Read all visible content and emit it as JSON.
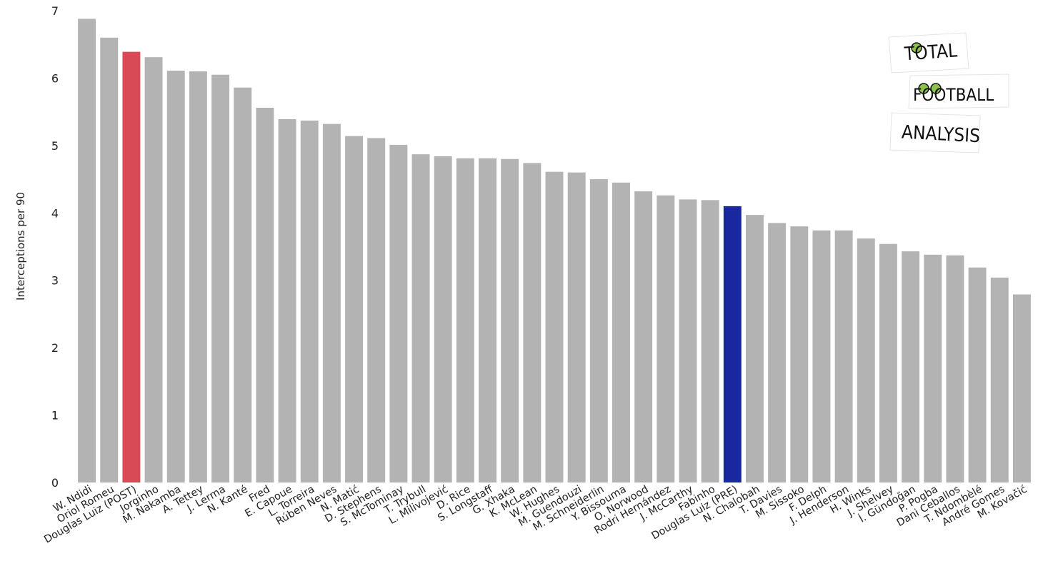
{
  "chart_data": {
    "type": "bar",
    "title": "",
    "xlabel": "",
    "ylabel": "Interceptions per 90",
    "ylim": [
      0,
      7
    ],
    "yticks": [
      0,
      1,
      2,
      3,
      4,
      5,
      6,
      7
    ],
    "grid": false,
    "default_color": "#b3b3b3",
    "highlights": [
      {
        "category": "Douglas Luiz (POST)",
        "color": "#d84a55"
      },
      {
        "category": "Douglas Luiz (PRE)",
        "color": "#1a28a0"
      }
    ],
    "categories": [
      "W. Ndidi",
      "Oriol Romeu",
      "Douglas Luiz (POST)",
      "Jorginho",
      "M. Nakamba",
      "A. Tettey",
      "J. Lerma",
      "N. Kanté",
      "Fred",
      "E. Capoue",
      "L. Torreira",
      "Rúben Neves",
      "N. Matić",
      "D. Stephens",
      "S. McTominay",
      "T. Trybull",
      "L. Milivojević",
      "D. Rice",
      "S. Longstaff",
      "G. Xhaka",
      "K. McLean",
      "W. Hughes",
      "M. Guendouzi",
      "M. Schneiderlin",
      "Y. Bissouma",
      "O. Norwood",
      "Rodri Hernández",
      "J. McCarthy",
      "Fabinho",
      "Douglas Luiz (PRE)",
      "N. Chalobah",
      "T. Davies",
      "M. Sissoko",
      "F. Delph",
      "J. Henderson",
      "H. Winks",
      "J. Shelvey",
      "İ. Gündoğan",
      "P. Pogba",
      "Dani Ceballos",
      "T. Ndombèlé",
      "André Gomes",
      "M. Kovačić"
    ],
    "values": [
      6.88,
      6.6,
      6.39,
      6.31,
      6.11,
      6.1,
      6.05,
      5.86,
      5.56,
      5.39,
      5.37,
      5.32,
      5.14,
      5.11,
      5.01,
      4.87,
      4.84,
      4.81,
      4.81,
      4.8,
      4.74,
      4.61,
      4.6,
      4.5,
      4.45,
      4.32,
      4.26,
      4.2,
      4.19,
      4.1,
      3.97,
      3.85,
      3.8,
      3.74,
      3.74,
      3.62,
      3.54,
      3.43,
      3.38,
      3.37,
      3.19,
      3.04,
      2.79
    ]
  },
  "logo": {
    "line1": "TOTAL",
    "line2": "FOOTBALL",
    "line3": "ANALYSIS"
  }
}
